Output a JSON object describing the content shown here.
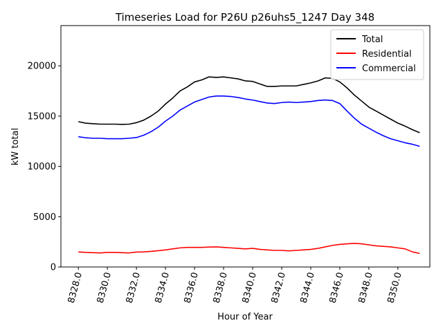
{
  "chart_data": {
    "type": "line",
    "title": "Timeseries Load for P26U p26uhs5_1247  Day 348",
    "xlabel": "Hour of Year",
    "ylabel": "kW total",
    "xlim": [
      8326.8,
      8352.2
    ],
    "ylim": [
      0,
      24000
    ],
    "xticks": [
      8328,
      8330,
      8332,
      8334,
      8336,
      8338,
      8340,
      8342,
      8344,
      8346,
      8348,
      8350
    ],
    "xtick_labels": [
      "8328.0",
      "8330.0",
      "8332.0",
      "8334.0",
      "8336.0",
      "8338.0",
      "8340.0",
      "8342.0",
      "8344.0",
      "8346.0",
      "8348.0",
      "8350.0"
    ],
    "yticks": [
      0,
      5000,
      10000,
      15000,
      20000
    ],
    "ytick_labels": [
      "0",
      "5000",
      "10000",
      "15000",
      "20000"
    ],
    "legend_position": "top-right",
    "x": [
      8328.0,
      8328.5,
      8329.0,
      8329.5,
      8330.0,
      8330.5,
      8331.0,
      8331.5,
      8332.0,
      8332.5,
      8333.0,
      8333.5,
      8334.0,
      8334.5,
      8335.0,
      8335.5,
      8336.0,
      8336.5,
      8337.0,
      8337.5,
      8338.0,
      8338.5,
      8339.0,
      8339.5,
      8340.0,
      8340.5,
      8341.0,
      8341.5,
      8342.0,
      8342.5,
      8343.0,
      8343.5,
      8344.0,
      8344.5,
      8345.0,
      8345.5,
      8346.0,
      8346.5,
      8347.0,
      8347.5,
      8348.0,
      8348.5,
      8349.0,
      8349.5,
      8350.0,
      8350.5,
      8351.0,
      8351.5
    ],
    "series": [
      {
        "name": "Total",
        "color": "#000000",
        "values": [
          14450,
          14300,
          14250,
          14200,
          14200,
          14200,
          14180,
          14200,
          14350,
          14600,
          15000,
          15500,
          16200,
          16800,
          17500,
          17900,
          18400,
          18600,
          18900,
          18850,
          18900,
          18800,
          18700,
          18500,
          18450,
          18200,
          17950,
          17950,
          18000,
          18000,
          18000,
          18150,
          18300,
          18500,
          18800,
          18750,
          18400,
          17800,
          17100,
          16500,
          15900,
          15500,
          15100,
          14700,
          14300,
          14000,
          13650,
          13350
        ]
      },
      {
        "name": "Residential",
        "color": "#ff0000",
        "values": [
          1500,
          1450,
          1420,
          1400,
          1450,
          1450,
          1420,
          1400,
          1480,
          1500,
          1550,
          1620,
          1700,
          1800,
          1900,
          1950,
          1950,
          1950,
          1980,
          2000,
          1950,
          1900,
          1850,
          1800,
          1850,
          1750,
          1700,
          1650,
          1650,
          1600,
          1650,
          1700,
          1750,
          1850,
          2000,
          2150,
          2250,
          2300,
          2350,
          2300,
          2200,
          2100,
          2050,
          2000,
          1900,
          1800,
          1500,
          1350
        ]
      },
      {
        "name": "Commercial",
        "color": "#0000ff",
        "values": [
          12950,
          12850,
          12800,
          12800,
          12750,
          12750,
          12750,
          12800,
          12870,
          13100,
          13450,
          13900,
          14500,
          15000,
          15600,
          16000,
          16400,
          16650,
          16900,
          17000,
          17000,
          16950,
          16850,
          16700,
          16600,
          16450,
          16300,
          16250,
          16350,
          16400,
          16350,
          16400,
          16450,
          16550,
          16600,
          16550,
          16250,
          15500,
          14800,
          14200,
          13800,
          13400,
          13050,
          12750,
          12550,
          12350,
          12200,
          12000
        ]
      }
    ]
  }
}
